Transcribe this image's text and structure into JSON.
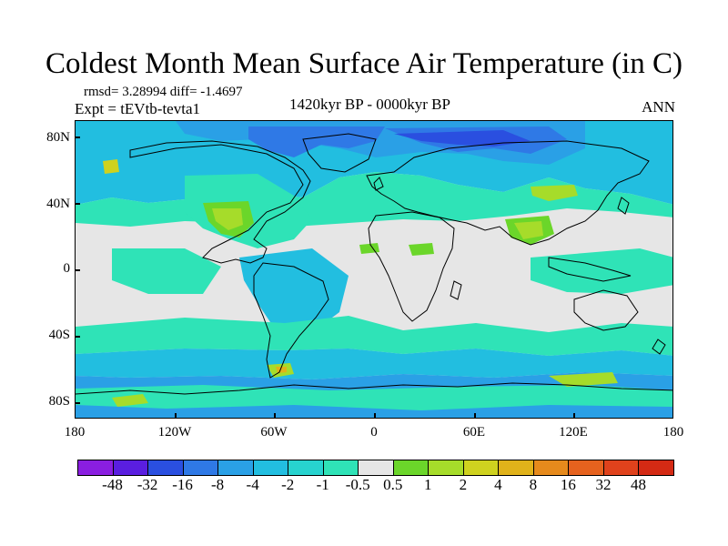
{
  "title": "Coldest Month Mean Surface Air Temperature (in C)",
  "stats": "rmsd= 3.28994 diff= -1.4697",
  "expt": "Expt = tEVtb-tevta1",
  "period": "1420kyr BP - 0000kyr BP",
  "season": "ANN",
  "axes": {
    "y_labels": [
      "80N",
      "40N",
      "0",
      "40S",
      "80S"
    ],
    "x_labels": [
      "180",
      "120W",
      "60W",
      "0",
      "60E",
      "120E",
      "180"
    ]
  },
  "colorbar": {
    "labels": [
      "-48",
      "-32",
      "-16",
      "-8",
      "-4",
      "-2",
      "-1",
      "-0.5",
      "0.5",
      "1",
      "2",
      "4",
      "8",
      "16",
      "32",
      "48"
    ],
    "colors": [
      "#8a1ee0",
      "#5a1ee0",
      "#2a4fe0",
      "#2f79e6",
      "#2aa0e6",
      "#22bee0",
      "#27d3cf",
      "#2fe3b7",
      "#e6e6e6",
      "#6bd62a",
      "#a6dc2a",
      "#cfd21f",
      "#e0b21a",
      "#e68a1c",
      "#e6621e",
      "#e0421c",
      "#d42a14"
    ]
  },
  "map_colors": {
    "land_neutral": "#e6e6e6",
    "pale_blue": "#2fe3b7",
    "cyan": "#22bee0",
    "blue": "#2aa0e6",
    "deep_blue": "#2f79e6",
    "darker_blue": "#2a4fe0",
    "green": "#6bd62a",
    "yellow_green": "#a6dc2a",
    "yellow": "#cfd21f",
    "orange": "#e0b21a"
  }
}
